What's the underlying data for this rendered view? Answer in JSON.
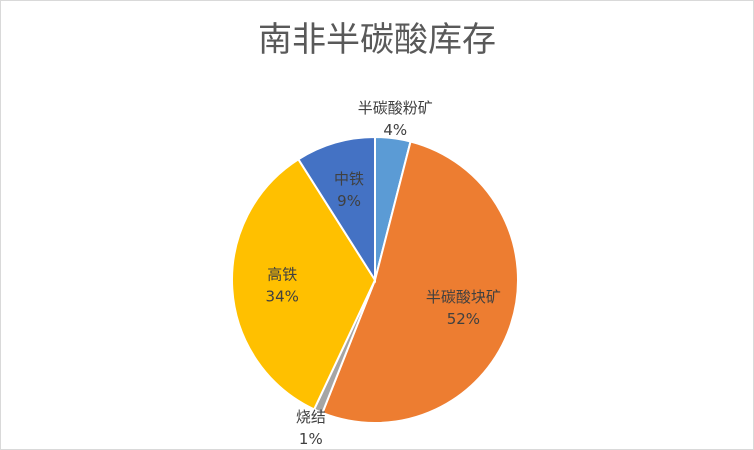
{
  "chart_data": {
    "type": "pie",
    "title": "南非半碳酸库存",
    "categories": [
      "半碳酸粉矿",
      "半碳酸块矿",
      "烧结",
      "高铁",
      "中铁"
    ],
    "values": [
      4,
      52,
      1,
      34,
      9
    ],
    "value_labels": [
      "4%",
      "52%",
      "1%",
      "34%",
      "9%"
    ],
    "colors": [
      "#5b9bd5",
      "#ed7d31",
      "#a5a5a5",
      "#ffc000",
      "#4472c4"
    ]
  }
}
